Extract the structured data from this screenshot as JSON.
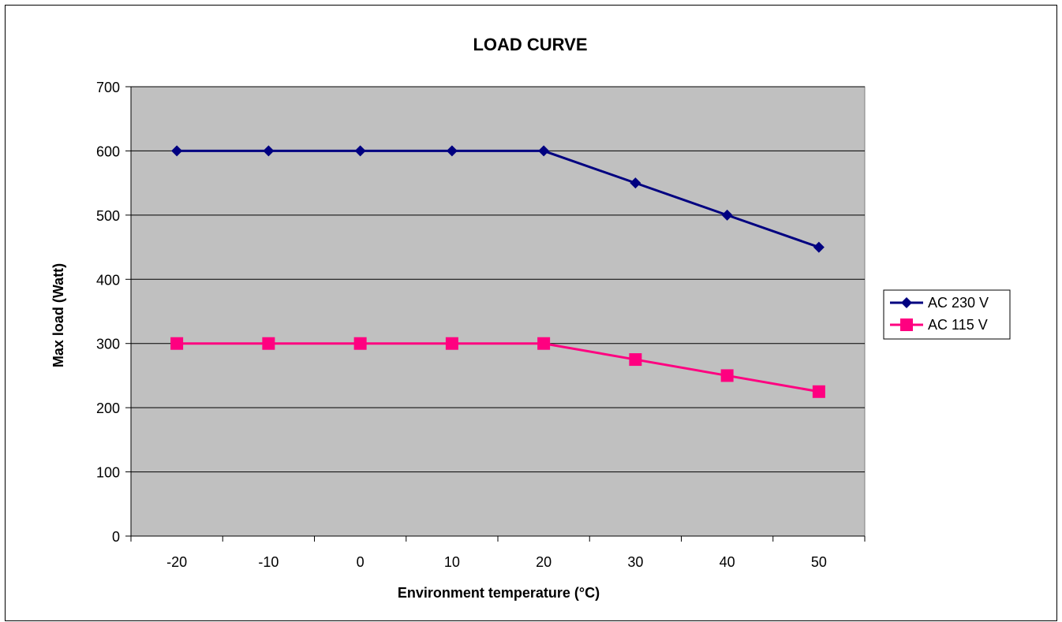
{
  "chart_data": {
    "type": "line",
    "title": "LOAD CURVE",
    "xlabel": "Environment temperature (°C)",
    "ylabel": "Max load (Watt)",
    "categories": [
      "-20",
      "-10",
      "0",
      "10",
      "20",
      "30",
      "40",
      "50"
    ],
    "ylim": [
      0,
      700
    ],
    "yticks": [
      "0",
      "100",
      "200",
      "300",
      "400",
      "500",
      "600",
      "700"
    ],
    "grid": true,
    "legend_position": "right",
    "plot_background": "#c0c0c0",
    "series": [
      {
        "name": "AC 230 V",
        "values": [
          600,
          600,
          600,
          600,
          600,
          550,
          500,
          450
        ],
        "color": "#000080",
        "marker": "diamond"
      },
      {
        "name": "AC 115 V",
        "values": [
          300,
          300,
          300,
          300,
          300,
          275,
          250,
          225
        ],
        "color": "#ff0080",
        "marker": "square"
      }
    ]
  }
}
